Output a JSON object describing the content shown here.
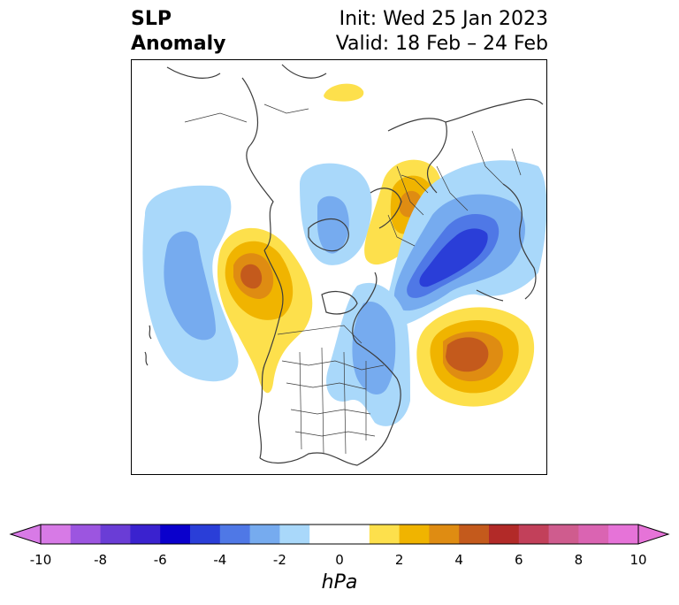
{
  "title": {
    "line1": "SLP",
    "line2": "Anomaly"
  },
  "init_label": "Init: Wed 25 Jan 2023",
  "valid_label": "Valid: 18 Feb – 24 Feb",
  "colorbar": {
    "unit": "hPa",
    "ticks": [
      "-10",
      "-8",
      "-6",
      "-4",
      "-2",
      "0",
      "2",
      "4",
      "6",
      "8",
      "10"
    ],
    "levels": [
      -10,
      -9,
      -8,
      -7,
      -6,
      -5,
      -4,
      -3,
      -2,
      -1,
      1,
      2,
      3,
      4,
      5,
      6,
      7,
      8,
      9,
      10
    ],
    "colors": {
      "under": "#d87ae6",
      "bins": [
        "#d77ae6",
        "#9c55e0",
        "#6a3dd6",
        "#3a22cf",
        "#0a00cc",
        "#2a3ed8",
        "#4f78e6",
        "#76abef",
        "#a9d8fa",
        "#ffffff",
        "#fde04c",
        "#f0b400",
        "#df8c12",
        "#c45a1c",
        "#b22a28",
        "#c2405a",
        "#cf5c8e",
        "#da64b2",
        "#e673d8"
      ],
      "over": "#e673d8"
    }
  },
  "map": {
    "features": [
      "coastlines",
      "country-borders",
      "us-state-borders"
    ],
    "anomaly_centers": [
      {
        "name": "ne-pacific-low",
        "sign": "negative",
        "max_hpa": -3
      },
      {
        "name": "alaska-yukon-high",
        "sign": "positive",
        "max_hpa": 5
      },
      {
        "name": "hudson-bay-low",
        "sign": "negative",
        "max_hpa": -3
      },
      {
        "name": "barents-kara-high",
        "sign": "positive",
        "max_hpa": 4
      },
      {
        "name": "siberia-arctic-low",
        "sign": "negative",
        "max_hpa": -6
      },
      {
        "name": "north-atlantic-high",
        "sign": "positive",
        "max_hpa": 5
      },
      {
        "name": "eastern-north-america-low",
        "sign": "negative",
        "max_hpa": -3
      }
    ]
  }
}
